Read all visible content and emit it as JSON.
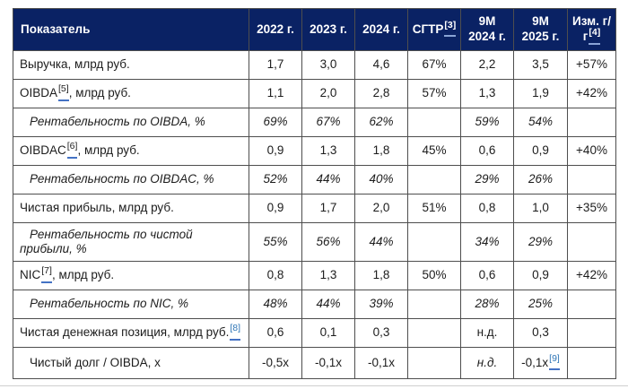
{
  "colors": {
    "header_bg": "#0a2264",
    "header_text": "#ffffff",
    "border": "#4e4e4e",
    "body_text": "#1c1c1c",
    "footnote_link_blue": "#2e75b6",
    "footnote_underline": "#4472c4"
  },
  "table": {
    "header": {
      "cols": [
        {
          "key": "indicator",
          "label": "Показатель"
        },
        {
          "key": "y2022",
          "label": "2022 г."
        },
        {
          "key": "y2023",
          "label": "2023 г."
        },
        {
          "key": "y2024",
          "label": "2024 г."
        },
        {
          "key": "cagr",
          "label": "СГТР",
          "sup": "[3]"
        },
        {
          "key": "m9-2024",
          "label": "9М",
          "label2": "2024 г."
        },
        {
          "key": "m9-2025",
          "label": "9М",
          "label2": "2025 г."
        },
        {
          "key": "yoy",
          "label": "Изм. г/",
          "label2": "г",
          "sup": "[4]"
        }
      ]
    },
    "rows": [
      {
        "name": {
          "pre": "Выручка, млрд руб."
        },
        "style": "normal",
        "values": [
          "1,7",
          "3,0",
          "4,6",
          "67%",
          "2,2",
          "3,5",
          "+57%"
        ]
      },
      {
        "name": {
          "pre": "OIBDA",
          "sup": "[5]",
          "post": ", млрд руб."
        },
        "style": "normal",
        "values": [
          "1,1",
          "2,0",
          "2,8",
          "57%",
          "1,3",
          "1,9",
          "+42%"
        ]
      },
      {
        "name": {
          "pre": "Рентабельность по OIBDA, %"
        },
        "style": "italic",
        "values": [
          "69%",
          "67%",
          "62%",
          "",
          "59%",
          "54%",
          ""
        ]
      },
      {
        "name": {
          "pre": "OIBDAC",
          "sup": "[6]",
          "post": ", млрд руб."
        },
        "style": "normal",
        "values": [
          "0,9",
          "1,3",
          "1,8",
          "45%",
          "0,6",
          "0,9",
          "+40%"
        ]
      },
      {
        "name": {
          "pre": "Рентабельность по OIBDAC, %"
        },
        "style": "italic",
        "values": [
          "52%",
          "44%",
          "40%",
          "",
          "29%",
          "26%",
          ""
        ]
      },
      {
        "name": {
          "pre": "Чистая прибыль, млрд руб."
        },
        "style": "normal",
        "values": [
          "0,9",
          "1,7",
          "2,0",
          "51%",
          "0,8",
          "1,0",
          "+35%"
        ]
      },
      {
        "name": {
          "pre": "Рентабельность по чистой прибыли, %"
        },
        "style": "italic",
        "values": [
          "55%",
          "56%",
          "44%",
          "",
          "34%",
          "29%",
          ""
        ]
      },
      {
        "name": {
          "pre": "NIC",
          "sup": "[7]",
          "post": ", млрд руб."
        },
        "style": "normal",
        "values": [
          "0,8",
          "1,3",
          "1,8",
          "50%",
          "0,6",
          "0,9",
          "+42%"
        ]
      },
      {
        "name": {
          "pre": "Рентабельность по NIC, %"
        },
        "style": "italic",
        "values": [
          "48%",
          "44%",
          "39%",
          "",
          "28%",
          "25%",
          ""
        ]
      },
      {
        "name": {
          "pre": "Чистая денежная позиция, млрд руб.",
          "sup": "[8]",
          "sup_blue": true
        },
        "style": "normal",
        "values": [
          "0,6",
          "0,1",
          "0,3",
          "",
          "н.д.",
          "0,3",
          ""
        ]
      },
      {
        "name": {
          "pre": "Чистый долг / OIBDA, x"
        },
        "style": "indent",
        "values": [
          "-0,5x",
          "-0,1x",
          "-0,1x",
          "",
          {
            "text": "н.д.",
            "italic": true
          },
          {
            "text": "-0,1x",
            "sup": "[9]",
            "sup_blue": true
          },
          ""
        ]
      }
    ]
  }
}
